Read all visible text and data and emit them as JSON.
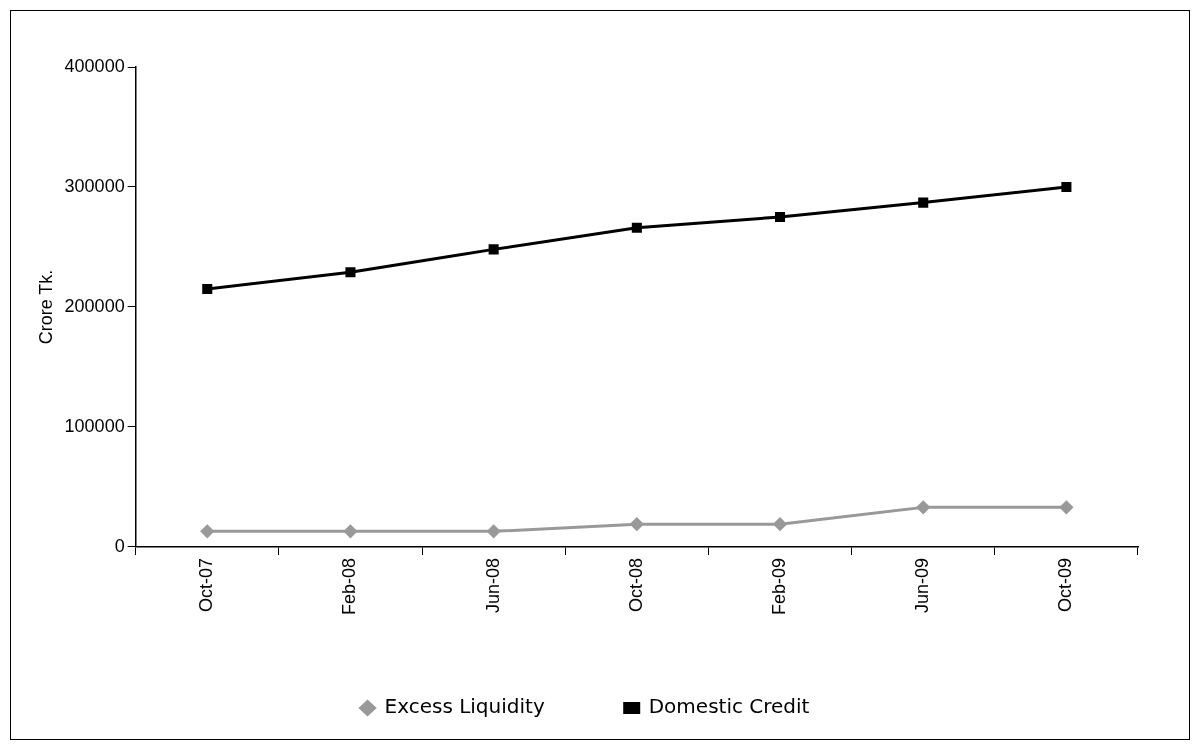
{
  "chart_data": {
    "type": "line",
    "ylabel": "Crore Tk.",
    "categories": [
      "Oct-07",
      "Feb-08",
      "Jun-08",
      "Oct-08",
      "Feb-09",
      "Jun-09",
      "Oct-09"
    ],
    "series": [
      {
        "name": "Excess Liquidity",
        "color": "#999999",
        "marker": "diamond",
        "values": [
          13000,
          13000,
          13000,
          19000,
          19000,
          33000,
          33000
        ]
      },
      {
        "name": "Domestic Credit",
        "color": "#000000",
        "marker": "square",
        "values": [
          215000,
          229000,
          248000,
          266000,
          275000,
          287000,
          300000
        ]
      }
    ],
    "ylim": [
      0,
      400000
    ],
    "yticks": [
      0,
      100000,
      200000,
      300000,
      400000
    ],
    "grid": false,
    "legend": "bottom",
    "line_style": "solid"
  }
}
